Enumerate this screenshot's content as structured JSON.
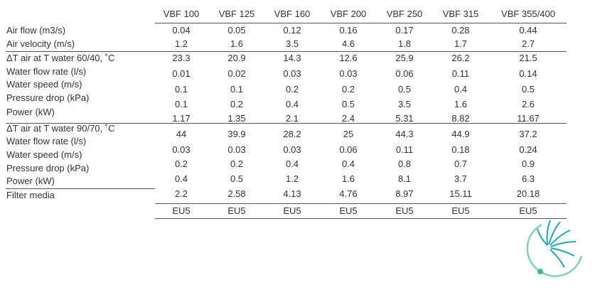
{
  "table": {
    "columns": [
      "VBF 100",
      "VBF 125",
      "VBF 160",
      "VBF 200",
      "VBF 250",
      "VBF 315",
      "VBF 355/400"
    ],
    "labels": [
      "Air flow (m3/s)",
      "Air velocity (m/s)",
      "ΔT air at T water 60/40, ˚C",
      "Water flow rate (l/s)",
      "Water speed (m/s)",
      "Pressure drop (kPa)",
      "Power (kW)",
      "ΔT air at T water 90/70, ˚C",
      "Water flow rate (l/s)",
      "Water speed (m/s)",
      "Pressure drop (kPa)",
      "Power (kW)",
      "Filter media"
    ],
    "rows": [
      [
        "0.04",
        "0.05",
        "0.12",
        "0.16",
        "0.17",
        "0.28",
        "0.44"
      ],
      [
        "1.2",
        "1.6",
        "3.5",
        "4.6",
        "1.8",
        "1.7",
        "2.7"
      ],
      [
        "23.3",
        "20.9",
        "14.3",
        "12.6",
        "25.9",
        "26.2",
        "21.5"
      ],
      [
        "0.01",
        "0.02",
        "0.03",
        "0.03",
        "0.06",
        "0.11",
        "0.14"
      ],
      [
        "0.1",
        "0.1",
        "0.2",
        "0.2",
        "0.5",
        "0.4",
        "0.5"
      ],
      [
        "0.1",
        "0.2",
        "0.4",
        "0.5",
        "3.5",
        "1.6",
        "2.6"
      ],
      [
        "1.17",
        "1.35",
        "2.1",
        "2.4",
        "5.31",
        "8.82",
        "11.67"
      ],
      [
        "44",
        "39.9",
        "28.2",
        "25",
        "44.3",
        "44.9",
        "37.2"
      ],
      [
        "0.03",
        "0.03",
        "0.03",
        "0.06",
        "0.11",
        "0.18",
        "0.24"
      ],
      [
        "0.2",
        "0.2",
        "0.4",
        "0.4",
        "0.8",
        "0.7",
        "0.9"
      ],
      [
        "0.4",
        "0.5",
        "1.2",
        "1.6",
        "8.1",
        "3.7",
        "6.3"
      ],
      [
        "2.2",
        "2.58",
        "4.13",
        "4.76",
        "8.97",
        "15.11",
        "20.18"
      ],
      [
        "EU5",
        "EU5",
        "EU5",
        "EU5",
        "EU5",
        "EU5",
        "EU5"
      ]
    ]
  }
}
